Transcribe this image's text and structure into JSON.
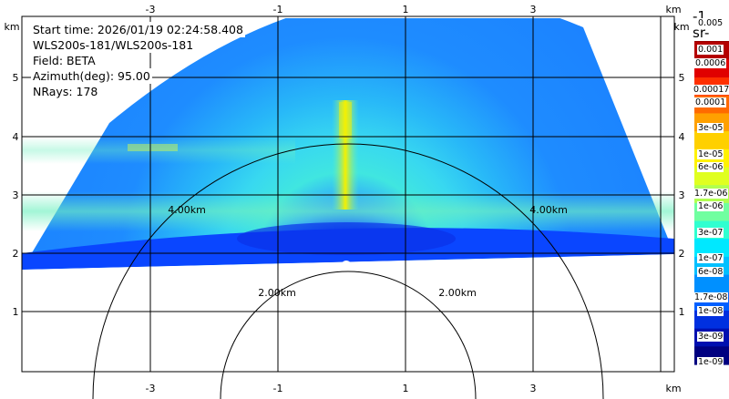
{
  "info": {
    "start_time": "Start time: 2026/01/19 02:24:58.408",
    "instrument": "WLS200s-181/WLS200s-181",
    "field": "Field: BETA",
    "azimuth": "Azimuth(deg): 95.00",
    "nrays": "NRays: 178"
  },
  "axes": {
    "unit": "km",
    "x_ticks_top": [
      "-3",
      "-1",
      "1",
      "3"
    ],
    "x_ticks_bottom": [
      "-3",
      "-1",
      "1",
      "3"
    ],
    "y_ticks_left": [
      "5",
      "4",
      "3",
      "2",
      "1"
    ],
    "y_ticks_right": [
      "5",
      "4",
      "3",
      "2",
      "1"
    ]
  },
  "range_rings": {
    "inner_label": "2.00km",
    "outer_label": "4.00km"
  },
  "colorbar": {
    "units": "-1 sr-",
    "top_label": "0.005",
    "labels": [
      "0.001",
      "0.0006",
      "0.00017",
      "0.0001",
      "3e-05",
      "1e-05",
      "6e-06",
      "1.7e-06",
      "1e-06",
      "3e-07",
      "1e-07",
      "6e-08",
      "1.7e-08",
      "1e-08",
      "3e-09",
      "1e-09"
    ],
    "colors": [
      "#8b0000",
      "#b40000",
      "#e00000",
      "#ff3000",
      "#ff6a00",
      "#ffa000",
      "#ffd000",
      "#fff200",
      "#e0ff20",
      "#b0ff50",
      "#70ffa0",
      "#30ffd0",
      "#00e8ff",
      "#00c0ff",
      "#0090ff",
      "#0060ff",
      "#0030e0",
      "#0010b0",
      "#000080"
    ]
  },
  "colors": {
    "background_echo": "#1e8cff",
    "echo_mid": "#2ec8f0",
    "echo_band": "#6ef0c0",
    "echo_plume": "#f0f000",
    "ground": "#0a46ff"
  }
}
